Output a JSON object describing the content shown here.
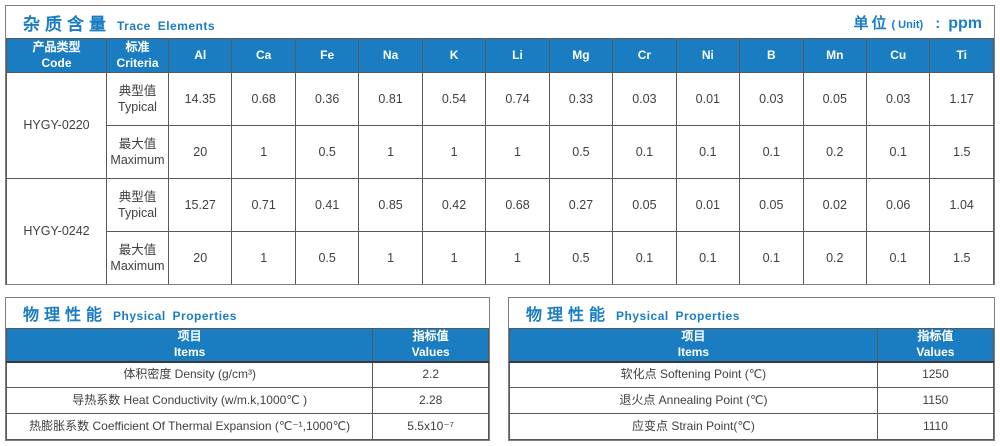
{
  "colors": {
    "accent": "#1a7dc2",
    "grid": "#595959",
    "panel_border": "#7f7f7f",
    "text": "#404040"
  },
  "trace_table": {
    "title_zh": "杂质含量",
    "title_en": "Trace Elements",
    "unit": {
      "zh": "单位",
      "paren": "( Unit)",
      "colon": ":",
      "value": "ppm"
    },
    "col_code": {
      "zh": "产品类型",
      "en": "Code"
    },
    "col_criteria": {
      "zh": "标准",
      "en": "Criteria"
    },
    "elements": [
      "Al",
      "Ca",
      "Fe",
      "Na",
      "K",
      "Li",
      "Mg",
      "Cr",
      "Ni",
      "B",
      "Mn",
      "Cu",
      "Ti"
    ],
    "row_groups": [
      {
        "code": "HYGY-0220",
        "rows": [
          {
            "criteria_zh": "典型值",
            "criteria_en": "Typical",
            "values": [
              "14.35",
              "0.68",
              "0.36",
              "0.81",
              "0.54",
              "0.74",
              "0.33",
              "0.03",
              "0.01",
              "0.03",
              "0.05",
              "0.03",
              "1.17"
            ]
          },
          {
            "criteria_zh": "最大值",
            "criteria_en": "Maximum",
            "values": [
              "20",
              "1",
              "0.5",
              "1",
              "1",
              "1",
              "0.5",
              "0.1",
              "0.1",
              "0.1",
              "0.2",
              "0.1",
              "1.5"
            ]
          }
        ]
      },
      {
        "code": "HYGY-0242",
        "rows": [
          {
            "criteria_zh": "典型值",
            "criteria_en": "Typical",
            "values": [
              "15.27",
              "0.71",
              "0.41",
              "0.85",
              "0.42",
              "0.68",
              "0.27",
              "0.05",
              "0.01",
              "0.05",
              "0.02",
              "0.06",
              "1.04"
            ]
          },
          {
            "criteria_zh": "最大值",
            "criteria_en": "Maximum",
            "values": [
              "20",
              "1",
              "0.5",
              "1",
              "1",
              "1",
              "0.5",
              "0.1",
              "0.1",
              "0.1",
              "0.2",
              "0.1",
              "1.5"
            ]
          }
        ]
      }
    ]
  },
  "physical_left": {
    "title_zh": "物理性能",
    "title_en": "Physical Properties",
    "col_items": {
      "zh": "项目",
      "en": "Items"
    },
    "col_values": {
      "zh": "指标值",
      "en": "Values"
    },
    "rows": [
      {
        "item": "体积密度 Density (g/cm³)",
        "value": "2.2"
      },
      {
        "item": "导热系数 Heat Conductivity (w/m.k,1000℃ )",
        "value": "2.28"
      },
      {
        "item": "热膨胀系数 Coefficient Of Thermal Expansion (℃⁻¹,1000℃)",
        "value": "5.5x10⁻⁷"
      }
    ]
  },
  "physical_right": {
    "title_zh": "物理性能",
    "title_en": "Physical Properties",
    "col_items": {
      "zh": "项目",
      "en": "Items"
    },
    "col_values": {
      "zh": "指标值",
      "en": "Values"
    },
    "rows": [
      {
        "item": "软化点 Softening Point (℃)",
        "value": "1250"
      },
      {
        "item": "退火点 Annealing Point (℃)",
        "value": "1150"
      },
      {
        "item": "应变点 Strain Point(℃)",
        "value": "1110"
      }
    ]
  }
}
